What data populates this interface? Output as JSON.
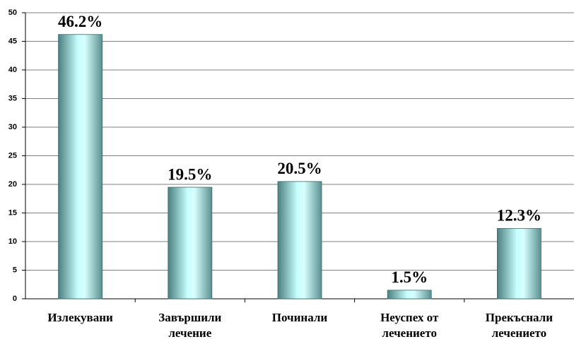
{
  "chart_data": {
    "type": "bar",
    "categories": [
      [
        "Излекувани"
      ],
      [
        "Завършили",
        "лечение"
      ],
      [
        "Починали"
      ],
      [
        "Неуспех от",
        "лечението"
      ],
      [
        "Прекъснали",
        "лечението"
      ]
    ],
    "values": [
      46.2,
      19.5,
      20.5,
      1.5,
      12.3
    ],
    "value_labels": [
      "46.2%",
      "19.5%",
      "20.5%",
      "1.5%",
      "12.3%"
    ],
    "ylim": [
      0,
      50
    ],
    "yticks": [
      0,
      5,
      10,
      15,
      20,
      25,
      30,
      35,
      40,
      45,
      50
    ],
    "grid": true
  }
}
